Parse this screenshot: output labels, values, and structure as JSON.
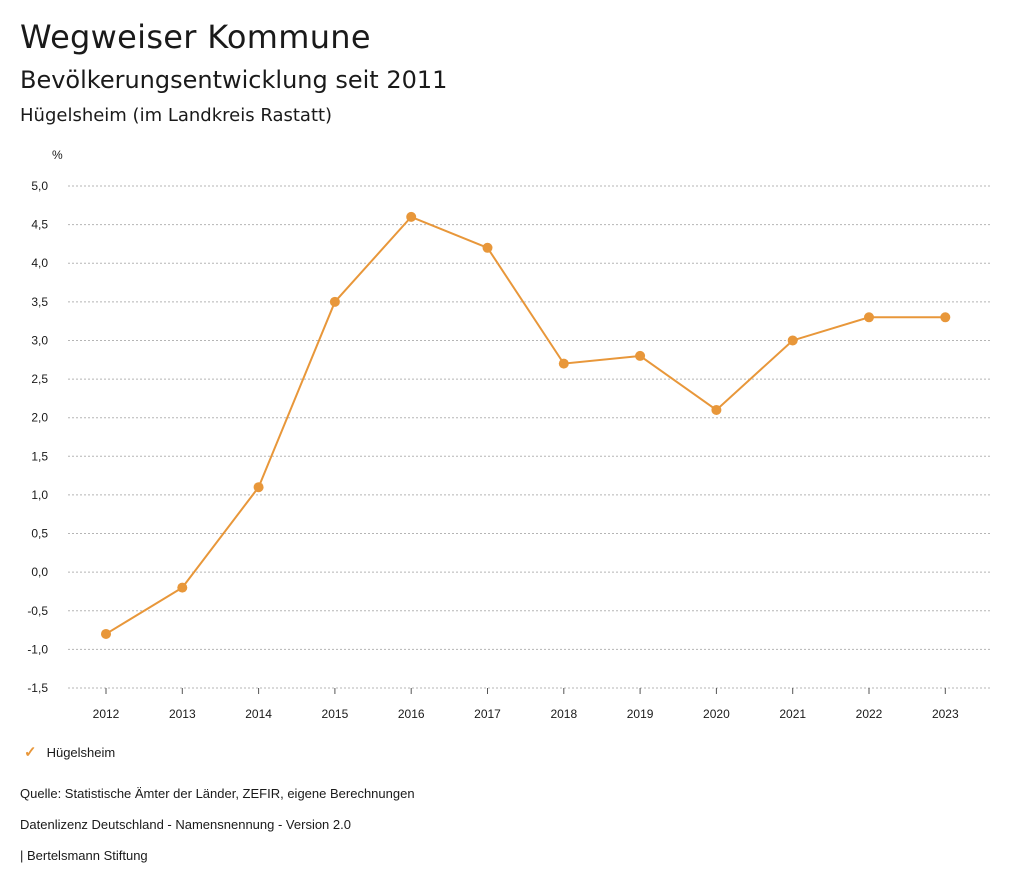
{
  "header": {
    "title": "Wegweiser Kommune",
    "subtitle": "Bevölkerungsentwicklung seit 2011",
    "region": "Hügelsheim (im Landkreis Rastatt)"
  },
  "chart_data": {
    "type": "line",
    "ylabel": "%",
    "xlabel": "",
    "ylim": [
      -1.5,
      5.0
    ],
    "yticks": [
      5.0,
      4.5,
      4.0,
      3.5,
      3.0,
      2.5,
      2.0,
      1.5,
      1.0,
      0.5,
      0.0,
      -0.5,
      -1.0,
      -1.5
    ],
    "ytick_labels": [
      "5,0",
      "4,5",
      "4,0",
      "3,5",
      "3,0",
      "2,5",
      "2,0",
      "1,5",
      "1,0",
      "0,5",
      "0,0",
      "-0,5",
      "-1,0",
      "-1,5"
    ],
    "categories": [
      "2012",
      "2013",
      "2014",
      "2015",
      "2016",
      "2017",
      "2018",
      "2019",
      "2020",
      "2021",
      "2022",
      "2023"
    ],
    "series": [
      {
        "name": "Hügelsheim",
        "color": "#e8973a",
        "values": [
          -0.8,
          -0.2,
          1.1,
          3.5,
          4.6,
          4.2,
          2.7,
          2.8,
          2.1,
          3.0,
          3.3,
          3.3
        ]
      }
    ],
    "grid": true,
    "grid_style": "dotted",
    "legend_position": "bottom-left"
  },
  "legend": {
    "icon": "check-icon",
    "label": "Hügelsheim"
  },
  "footer": {
    "source": "Quelle: Statistische Ämter der Länder, ZEFIR, eigene Berechnungen",
    "license": "Datenlizenz Deutschland - Namensnennung - Version 2.0",
    "publisher": "| Bertelsmann Stiftung"
  }
}
